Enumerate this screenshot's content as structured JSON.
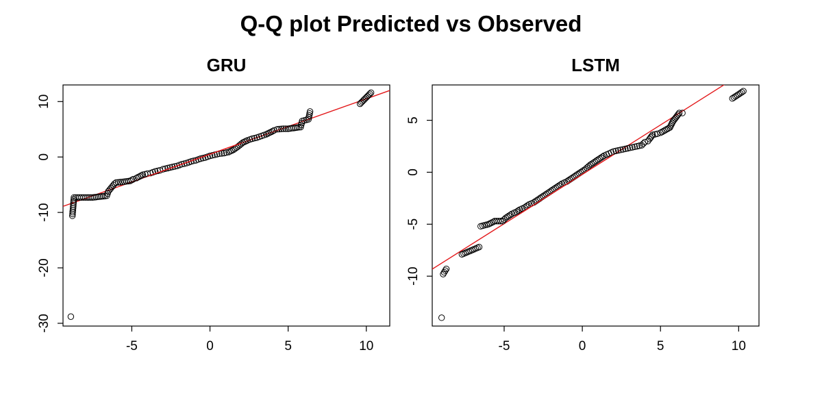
{
  "figure_title": "Q-Q plot Predicted vs Observed",
  "colors": {
    "points": "#000000",
    "reference_line": "#e31a1c",
    "frame": "#000000"
  },
  "chart_data": [
    {
      "type": "scatter",
      "title": "GRU",
      "xlabel": "",
      "ylabel": "",
      "xlim": [
        -9.4,
        11.5
      ],
      "ylim": [
        -30.5,
        13
      ],
      "x_ticks": [
        -5,
        0,
        5,
        10
      ],
      "y_ticks": [
        -30,
        -20,
        -10,
        0,
        10
      ],
      "reference_line": {
        "slope": 1.0,
        "intercept": 0.5
      },
      "points": [
        [
          -8.9,
          -28.8
        ],
        [
          -8.8,
          -10.6
        ],
        [
          -8.7,
          -7.3
        ],
        [
          -7.5,
          -7.3
        ],
        [
          -6.6,
          -7.0
        ],
        [
          -6.5,
          -6.2
        ],
        [
          -6.1,
          -4.8
        ],
        [
          -6.0,
          -4.6
        ],
        [
          -5.6,
          -4.5
        ],
        [
          -5.1,
          -4.3
        ],
        [
          -4.9,
          -4.0
        ],
        [
          -4.7,
          -3.8
        ],
        [
          -4.5,
          -3.5
        ],
        [
          -4.3,
          -3.2
        ],
        [
          -4.0,
          -3.0
        ],
        [
          -3.8,
          -2.9
        ],
        [
          -3.5,
          -2.6
        ],
        [
          -3.2,
          -2.4
        ],
        [
          -3.0,
          -2.2
        ],
        [
          -2.7,
          -2.0
        ],
        [
          -2.4,
          -1.8
        ],
        [
          -2.1,
          -1.6
        ],
        [
          -1.8,
          -1.3
        ],
        [
          -1.5,
          -1.1
        ],
        [
          -1.2,
          -0.8
        ],
        [
          -0.9,
          -0.6
        ],
        [
          -0.6,
          -0.3
        ],
        [
          -0.3,
          -0.1
        ],
        [
          0.0,
          0.2
        ],
        [
          0.3,
          0.4
        ],
        [
          0.6,
          0.6
        ],
        [
          0.9,
          0.7
        ],
        [
          1.2,
          0.9
        ],
        [
          1.5,
          1.3
        ],
        [
          1.8,
          1.9
        ],
        [
          2.1,
          2.6
        ],
        [
          2.4,
          3.0
        ],
        [
          2.7,
          3.3
        ],
        [
          3.0,
          3.5
        ],
        [
          3.3,
          3.8
        ],
        [
          3.6,
          4.1
        ],
        [
          3.9,
          4.5
        ],
        [
          4.1,
          4.8
        ],
        [
          4.3,
          5.0
        ],
        [
          4.7,
          5.1
        ],
        [
          5.0,
          5.1
        ],
        [
          5.8,
          5.4
        ],
        [
          5.9,
          6.5
        ],
        [
          6.3,
          6.8
        ],
        [
          6.4,
          8.2
        ],
        [
          9.6,
          9.6
        ],
        [
          10.3,
          11.6
        ]
      ]
    },
    {
      "type": "scatter",
      "title": "LSTM",
      "xlabel": "",
      "ylabel": "",
      "xlim": [
        -9.6,
        11.3
      ],
      "ylim": [
        -14.8,
        8.4
      ],
      "x_ticks": [
        -5,
        0,
        5,
        10
      ],
      "y_ticks": [
        -10,
        -5,
        0,
        5
      ],
      "reference_line": {
        "slope": 0.95,
        "intercept": -0.2
      },
      "points": [
        [
          -9.0,
          -14.0
        ],
        [
          -8.9,
          -9.8
        ],
        [
          -8.7,
          -9.3
        ],
        [
          -7.7,
          -7.9
        ],
        [
          -6.6,
          -7.2
        ],
        [
          -6.5,
          -5.2
        ],
        [
          -6.0,
          -5.0
        ],
        [
          -5.6,
          -4.7
        ],
        [
          -5.1,
          -4.7
        ],
        [
          -4.9,
          -4.4
        ],
        [
          -4.7,
          -4.2
        ],
        [
          -4.5,
          -4.0
        ],
        [
          -4.2,
          -3.8
        ],
        [
          -4.0,
          -3.6
        ],
        [
          -3.7,
          -3.4
        ],
        [
          -3.4,
          -3.1
        ],
        [
          -3.1,
          -2.9
        ],
        [
          -2.8,
          -2.6
        ],
        [
          -2.5,
          -2.3
        ],
        [
          -2.2,
          -2.0
        ],
        [
          -1.9,
          -1.7
        ],
        [
          -1.6,
          -1.4
        ],
        [
          -1.3,
          -1.1
        ],
        [
          -1.0,
          -0.9
        ],
        [
          -0.7,
          -0.6
        ],
        [
          -0.4,
          -0.3
        ],
        [
          -0.1,
          0.0
        ],
        [
          0.2,
          0.3
        ],
        [
          0.5,
          0.7
        ],
        [
          0.8,
          1.0
        ],
        [
          1.1,
          1.3
        ],
        [
          1.4,
          1.6
        ],
        [
          1.7,
          1.8
        ],
        [
          2.0,
          2.0
        ],
        [
          2.3,
          2.1
        ],
        [
          2.6,
          2.2
        ],
        [
          2.9,
          2.3
        ],
        [
          3.2,
          2.4
        ],
        [
          3.5,
          2.5
        ],
        [
          3.8,
          2.6
        ],
        [
          4.0,
          2.9
        ],
        [
          4.2,
          3.0
        ],
        [
          4.3,
          3.2
        ],
        [
          4.5,
          3.6
        ],
        [
          4.8,
          3.7
        ],
        [
          5.0,
          3.8
        ],
        [
          5.6,
          4.3
        ],
        [
          5.7,
          4.6
        ],
        [
          5.8,
          4.9
        ],
        [
          6.2,
          5.7
        ],
        [
          6.4,
          5.7
        ],
        [
          9.6,
          7.1
        ],
        [
          10.3,
          7.8
        ]
      ]
    }
  ]
}
